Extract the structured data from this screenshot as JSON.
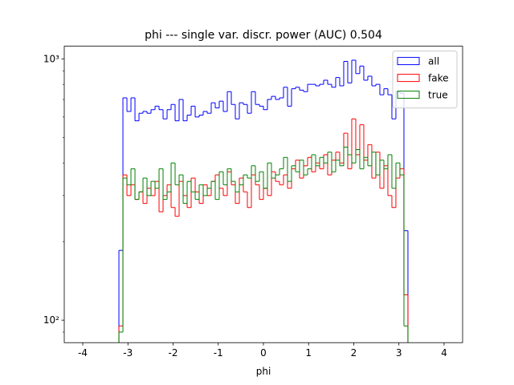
{
  "chart_data": {
    "type": "step-histogram",
    "title": "phi --- single var. discr. power (AUC) 0.504",
    "xlabel": "phi",
    "bins": [
      -3.2,
      -3.1111,
      -3.0222,
      -2.9333,
      -2.8444,
      -2.7556,
      -2.6667,
      -2.5778,
      -2.4889,
      -2.4,
      -2.3111,
      -2.2222,
      -2.1333,
      -2.0444,
      -1.9556,
      -1.8667,
      -1.7778,
      -1.6889,
      -1.6,
      -1.5111,
      -1.4222,
      -1.3333,
      -1.2444,
      -1.1556,
      -1.0667,
      -0.9778,
      -0.8889,
      -0.8,
      -0.7111,
      -0.6222,
      -0.5333,
      -0.4444,
      -0.3556,
      -0.2667,
      -0.1778,
      -0.0889,
      0,
      0.0889,
      0.1778,
      0.2667,
      0.3556,
      0.4444,
      0.5333,
      0.6222,
      0.7111,
      0.8,
      0.8889,
      0.9778,
      1.0667,
      1.1556,
      1.2444,
      1.3333,
      1.4222,
      1.5111,
      1.6,
      1.6889,
      1.7778,
      1.8667,
      1.9556,
      2.0444,
      2.1333,
      2.2222,
      2.3111,
      2.4,
      2.4889,
      2.5778,
      2.6667,
      2.7556,
      2.8444,
      2.9333,
      3.0222,
      3.1111,
      3.2
    ],
    "series": [
      {
        "name": "all",
        "color": "#0000ff",
        "values": [
          185,
          710,
          630,
          710,
          580,
          620,
          630,
          620,
          640,
          660,
          640,
          590,
          640,
          670,
          580,
          700,
          580,
          610,
          660,
          600,
          610,
          630,
          620,
          680,
          650,
          690,
          630,
          750,
          670,
          590,
          680,
          670,
          620,
          750,
          670,
          660,
          640,
          700,
          720,
          700,
          710,
          780,
          660,
          770,
          780,
          760,
          750,
          800,
          800,
          790,
          800,
          830,
          800,
          780,
          850,
          790,
          980,
          810,
          990,
          880,
          940,
          830,
          860,
          790,
          800,
          730,
          770,
          730,
          590,
          750,
          740,
          220
        ]
      },
      {
        "name": "fake",
        "color": "#ff0000",
        "values": [
          95,
          360,
          300,
          330,
          290,
          310,
          280,
          320,
          300,
          340,
          260,
          300,
          330,
          270,
          250,
          340,
          300,
          270,
          350,
          310,
          280,
          330,
          300,
          340,
          360,
          320,
          300,
          370,
          330,
          280,
          350,
          310,
          270,
          360,
          330,
          290,
          320,
          300,
          370,
          340,
          330,
          360,
          320,
          380,
          410,
          350,
          390,
          420,
          370,
          400,
          380,
          430,
          360,
          410,
          440,
          400,
          520,
          380,
          590,
          430,
          560,
          410,
          470,
          350,
          440,
          320,
          390,
          300,
          270,
          350,
          380,
          125
        ]
      },
      {
        "name": "true",
        "color": "#008000",
        "values": [
          90,
          350,
          330,
          380,
          290,
          310,
          350,
          300,
          340,
          320,
          380,
          290,
          310,
          400,
          330,
          360,
          280,
          340,
          310,
          290,
          330,
          300,
          320,
          340,
          290,
          370,
          330,
          380,
          340,
          310,
          330,
          360,
          350,
          390,
          340,
          370,
          320,
          400,
          350,
          360,
          380,
          420,
          340,
          390,
          370,
          410,
          360,
          380,
          430,
          390,
          420,
          400,
          440,
          370,
          410,
          390,
          460,
          430,
          400,
          450,
          380,
          420,
          390,
          440,
          360,
          410,
          380,
          430,
          320,
          400,
          360,
          95
        ]
      }
    ],
    "xlim": [
      -4.41,
      4.41
    ],
    "xticks": [
      -4,
      -3,
      -2,
      -1,
      0,
      1,
      2,
      3,
      4
    ],
    "ylim": [
      82,
      1120
    ],
    "ylog": true,
    "yticks": [
      {
        "value": 100,
        "label": "10²"
      },
      {
        "value": 1000,
        "label": "10³"
      }
    ],
    "yminorticks": [
      90,
      200,
      300,
      400,
      500,
      600,
      700,
      800,
      900
    ],
    "legend": "upper right"
  }
}
